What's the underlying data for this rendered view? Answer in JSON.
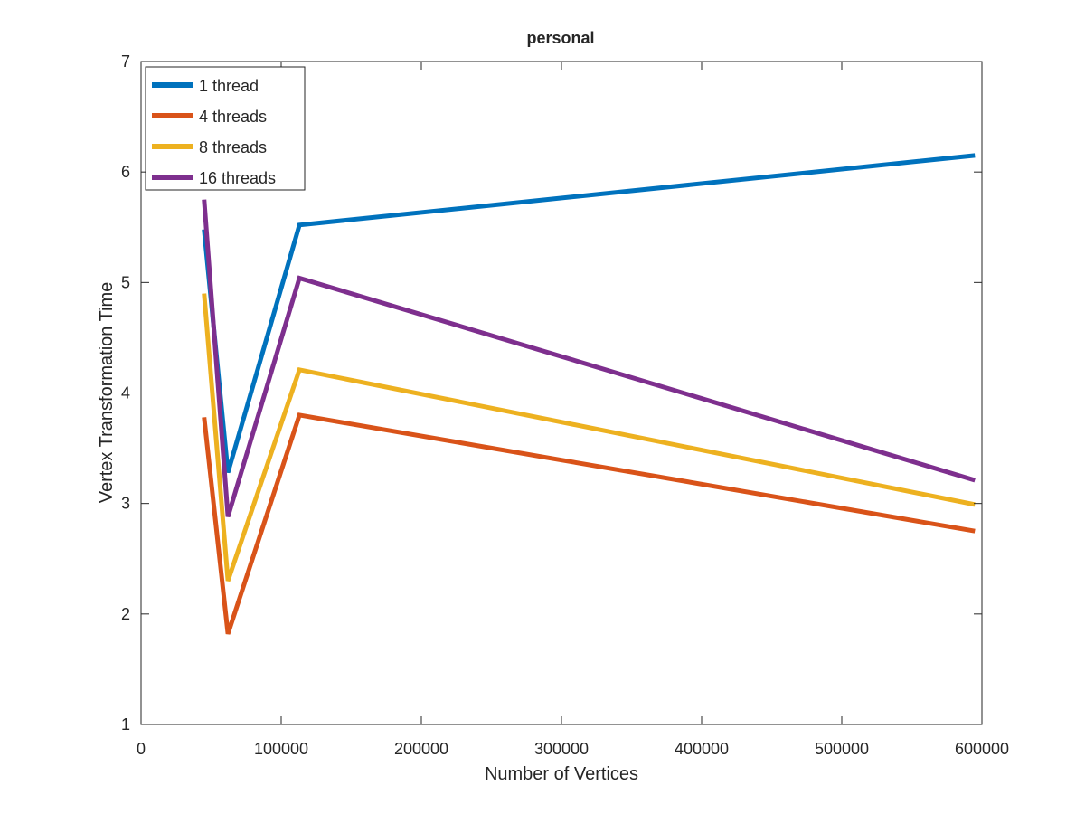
{
  "chart_data": {
    "type": "line",
    "title": "personal",
    "xlabel": "Number of Vertices",
    "ylabel": "Vertex Transformation Time",
    "xlim": [
      0,
      600000
    ],
    "ylim": [
      1,
      7
    ],
    "xticks": [
      0,
      100000,
      200000,
      300000,
      400000,
      500000,
      600000
    ],
    "yticks": [
      1,
      2,
      3,
      4,
      5,
      6,
      7
    ],
    "grid": false,
    "legend_location": "top-left",
    "x": [
      45000,
      62000,
      113000,
      595000
    ],
    "series": [
      {
        "name": "1 thread",
        "color": "#0072BD",
        "values": [
          5.48,
          3.28,
          5.52,
          6.15
        ]
      },
      {
        "name": "4 threads",
        "color": "#D95319",
        "values": [
          3.78,
          1.82,
          3.8,
          2.75
        ]
      },
      {
        "name": "8 threads",
        "color": "#EDB120",
        "values": [
          4.9,
          2.3,
          4.21,
          2.99
        ]
      },
      {
        "name": "16 threads",
        "color": "#7E2F8E",
        "values": [
          5.75,
          2.88,
          5.04,
          3.21
        ]
      }
    ]
  }
}
